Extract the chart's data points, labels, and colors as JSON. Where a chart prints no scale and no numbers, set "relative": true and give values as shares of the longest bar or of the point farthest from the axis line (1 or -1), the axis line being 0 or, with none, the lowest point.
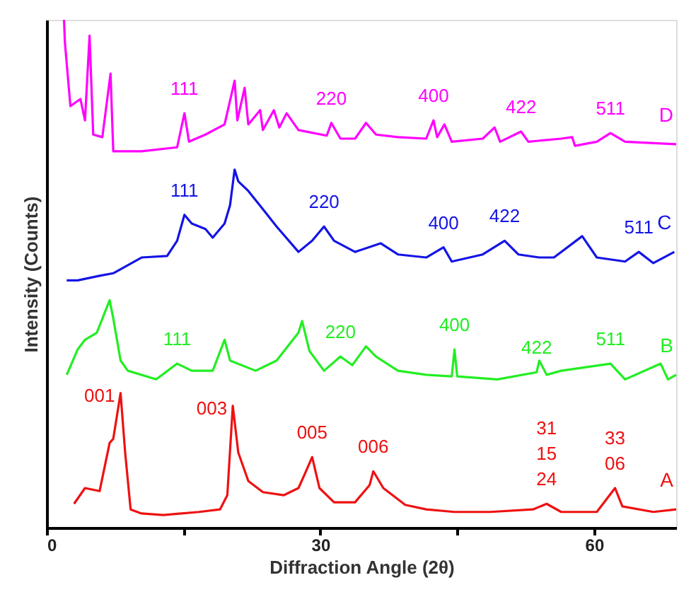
{
  "chart_data": {
    "type": "line",
    "relative": true,
    "xlabel": "Diffraction Angle (2θ)",
    "ylabel": "Intensity (Counts)",
    "xlim": [
      0,
      69
    ],
    "xticks": [
      0,
      {
        "value": 15,
        "label": null
      },
      30,
      {
        "value": 45,
        "label": null
      },
      60
    ],
    "grid": false,
    "legend": false,
    "marker": "none",
    "line_style": "solid",
    "series": [
      {
        "name": "D",
        "color": "#ff00ff",
        "x": [
          1.9,
          2.0,
          2.6,
          3.7,
          4.2,
          4.7,
          5.1,
          6.1,
          7.0,
          7.3,
          10.4,
          14.3,
          15.1,
          15.6,
          17.4,
          19.5,
          20.6,
          20.9,
          21.7,
          22.1,
          23.4,
          23.7,
          24.9,
          25.5,
          26.3,
          27.6,
          30.7,
          31.2,
          32.2,
          33.8,
          35.0,
          36.1,
          38.5,
          41.6,
          42.4,
          42.8,
          43.6,
          44.4,
          47.8,
          49.1,
          49.7,
          52.0,
          52.8,
          56.4,
          57.6,
          57.9,
          60.3,
          61.8,
          63.4,
          69.0
        ],
        "values": [
          1.0,
          0.955,
          0.83,
          0.844,
          0.802,
          0.969,
          0.774,
          0.769,
          0.894,
          0.741,
          0.741,
          0.749,
          0.816,
          0.76,
          0.774,
          0.794,
          0.88,
          0.802,
          0.866,
          0.794,
          0.822,
          0.783,
          0.822,
          0.788,
          0.816,
          0.783,
          0.772,
          0.797,
          0.766,
          0.766,
          0.797,
          0.774,
          0.769,
          0.766,
          0.802,
          0.769,
          0.794,
          0.76,
          0.766,
          0.788,
          0.76,
          0.78,
          0.76,
          0.766,
          0.769,
          0.752,
          0.76,
          0.777,
          0.76,
          0.755
        ]
      },
      {
        "name": "C",
        "color": "#1414e6",
        "x": [
          2.2,
          3.4,
          5.8,
          7.3,
          10.4,
          13.2,
          14.3,
          15.1,
          15.9,
          17.4,
          18.2,
          19.5,
          20.1,
          20.6,
          21.0,
          22.1,
          23.7,
          25.2,
          27.6,
          29.1,
          30.4,
          31.5,
          33.8,
          36.6,
          38.5,
          41.6,
          43.5,
          44.4,
          47.8,
          50.2,
          51.7,
          54.0,
          55.6,
          58.7,
          60.3,
          63.4,
          64.9,
          66.5,
          68.8
        ],
        "values": [
          0.487,
          0.487,
          0.496,
          0.501,
          0.532,
          0.535,
          0.565,
          0.616,
          0.599,
          0.588,
          0.571,
          0.599,
          0.635,
          0.705,
          0.682,
          0.663,
          0.627,
          0.593,
          0.543,
          0.565,
          0.593,
          0.565,
          0.543,
          0.56,
          0.538,
          0.532,
          0.552,
          0.524,
          0.538,
          0.565,
          0.538,
          0.532,
          0.532,
          0.574,
          0.532,
          0.524,
          0.543,
          0.521,
          0.543
        ]
      },
      {
        "name": "B",
        "color": "#22ee22",
        "x": [
          2.2,
          3.4,
          4.2,
          5.5,
          6.9,
          7.3,
          8.1,
          8.9,
          12.0,
          14.3,
          15.9,
          18.2,
          19.5,
          20.1,
          22.9,
          25.2,
          27.6,
          28.0,
          28.8,
          30.4,
          32.2,
          33.5,
          35.0,
          36.1,
          38.5,
          41.6,
          44.4,
          44.7,
          45.0,
          49.4,
          53.7,
          54.0,
          54.8,
          56.4,
          61.8,
          63.4,
          67.3,
          68.1,
          69.0
        ],
        "values": [
          0.301,
          0.351,
          0.37,
          0.384,
          0.448,
          0.412,
          0.329,
          0.309,
          0.292,
          0.323,
          0.309,
          0.309,
          0.37,
          0.329,
          0.309,
          0.329,
          0.384,
          0.407,
          0.348,
          0.309,
          0.337,
          0.32,
          0.357,
          0.337,
          0.309,
          0.301,
          0.298,
          0.351,
          0.298,
          0.292,
          0.306,
          0.329,
          0.301,
          0.309,
          0.323,
          0.292,
          0.323,
          0.292,
          0.301
        ]
      },
      {
        "name": "A",
        "color": "#ee1111",
        "x": [
          3.0,
          4.2,
          5.8,
          6.9,
          7.3,
          8.1,
          8.6,
          9.2,
          10.4,
          12.8,
          16.7,
          19.0,
          19.8,
          20.4,
          21.0,
          22.1,
          23.7,
          26.0,
          27.6,
          28.3,
          29.1,
          29.9,
          31.5,
          33.8,
          35.4,
          35.8,
          36.9,
          39.3,
          41.6,
          44.7,
          48.6,
          53.3,
          54.8,
          56.4,
          60.3,
          62.3,
          63.1,
          66.5,
          69.0
        ],
        "values": [
          0.047,
          0.078,
          0.072,
          0.167,
          0.175,
          0.265,
          0.148,
          0.036,
          0.028,
          0.025,
          0.031,
          0.036,
          0.064,
          0.24,
          0.148,
          0.092,
          0.07,
          0.064,
          0.078,
          0.106,
          0.139,
          0.078,
          0.05,
          0.05,
          0.084,
          0.111,
          0.078,
          0.045,
          0.036,
          0.031,
          0.031,
          0.036,
          0.047,
          0.031,
          0.031,
          0.078,
          0.042,
          0.031,
          0.036
        ]
      }
    ],
    "annotations": [
      {
        "text": "111",
        "x": 15.1,
        "y": 0.816
      },
      {
        "text": "220",
        "x": 31.2,
        "y": 0.797
      },
      {
        "text": "400",
        "x": 42.4,
        "y": 0.802
      },
      {
        "text": "422",
        "x": 52.0,
        "y": 0.78
      },
      {
        "text": "511",
        "x": 61.8,
        "y": 0.777
      },
      {
        "text": "111",
        "x": 15.1,
        "y": 0.616
      },
      {
        "text": "220",
        "x": 30.4,
        "y": 0.593
      },
      {
        "text": "400",
        "x": 43.5,
        "y": 0.552
      },
      {
        "text": "422",
        "x": 50.2,
        "y": 0.565
      },
      {
        "text": "511",
        "x": 64.9,
        "y": 0.543
      },
      {
        "text": "111",
        "x": 14.3,
        "y": 0.323
      },
      {
        "text": "220",
        "x": 32.2,
        "y": 0.337
      },
      {
        "text": "400",
        "x": 44.7,
        "y": 0.351
      },
      {
        "text": "422",
        "x": 53.7,
        "y": 0.306
      },
      {
        "text": "511",
        "x": 61.8,
        "y": 0.323
      },
      {
        "text": "001",
        "x": 8.1,
        "y": 0.265
      },
      {
        "text": "003",
        "x": 20.4,
        "y": 0.24
      },
      {
        "text": "005",
        "x": 29.1,
        "y": 0.139
      },
      {
        "text": "006",
        "x": 35.8,
        "y": 0.111
      },
      {
        "text": "31\n15\n24",
        "x": 54.8,
        "y": 0.047
      },
      {
        "text": "33\n06",
        "x": 62.3,
        "y": 0.078
      }
    ]
  }
}
